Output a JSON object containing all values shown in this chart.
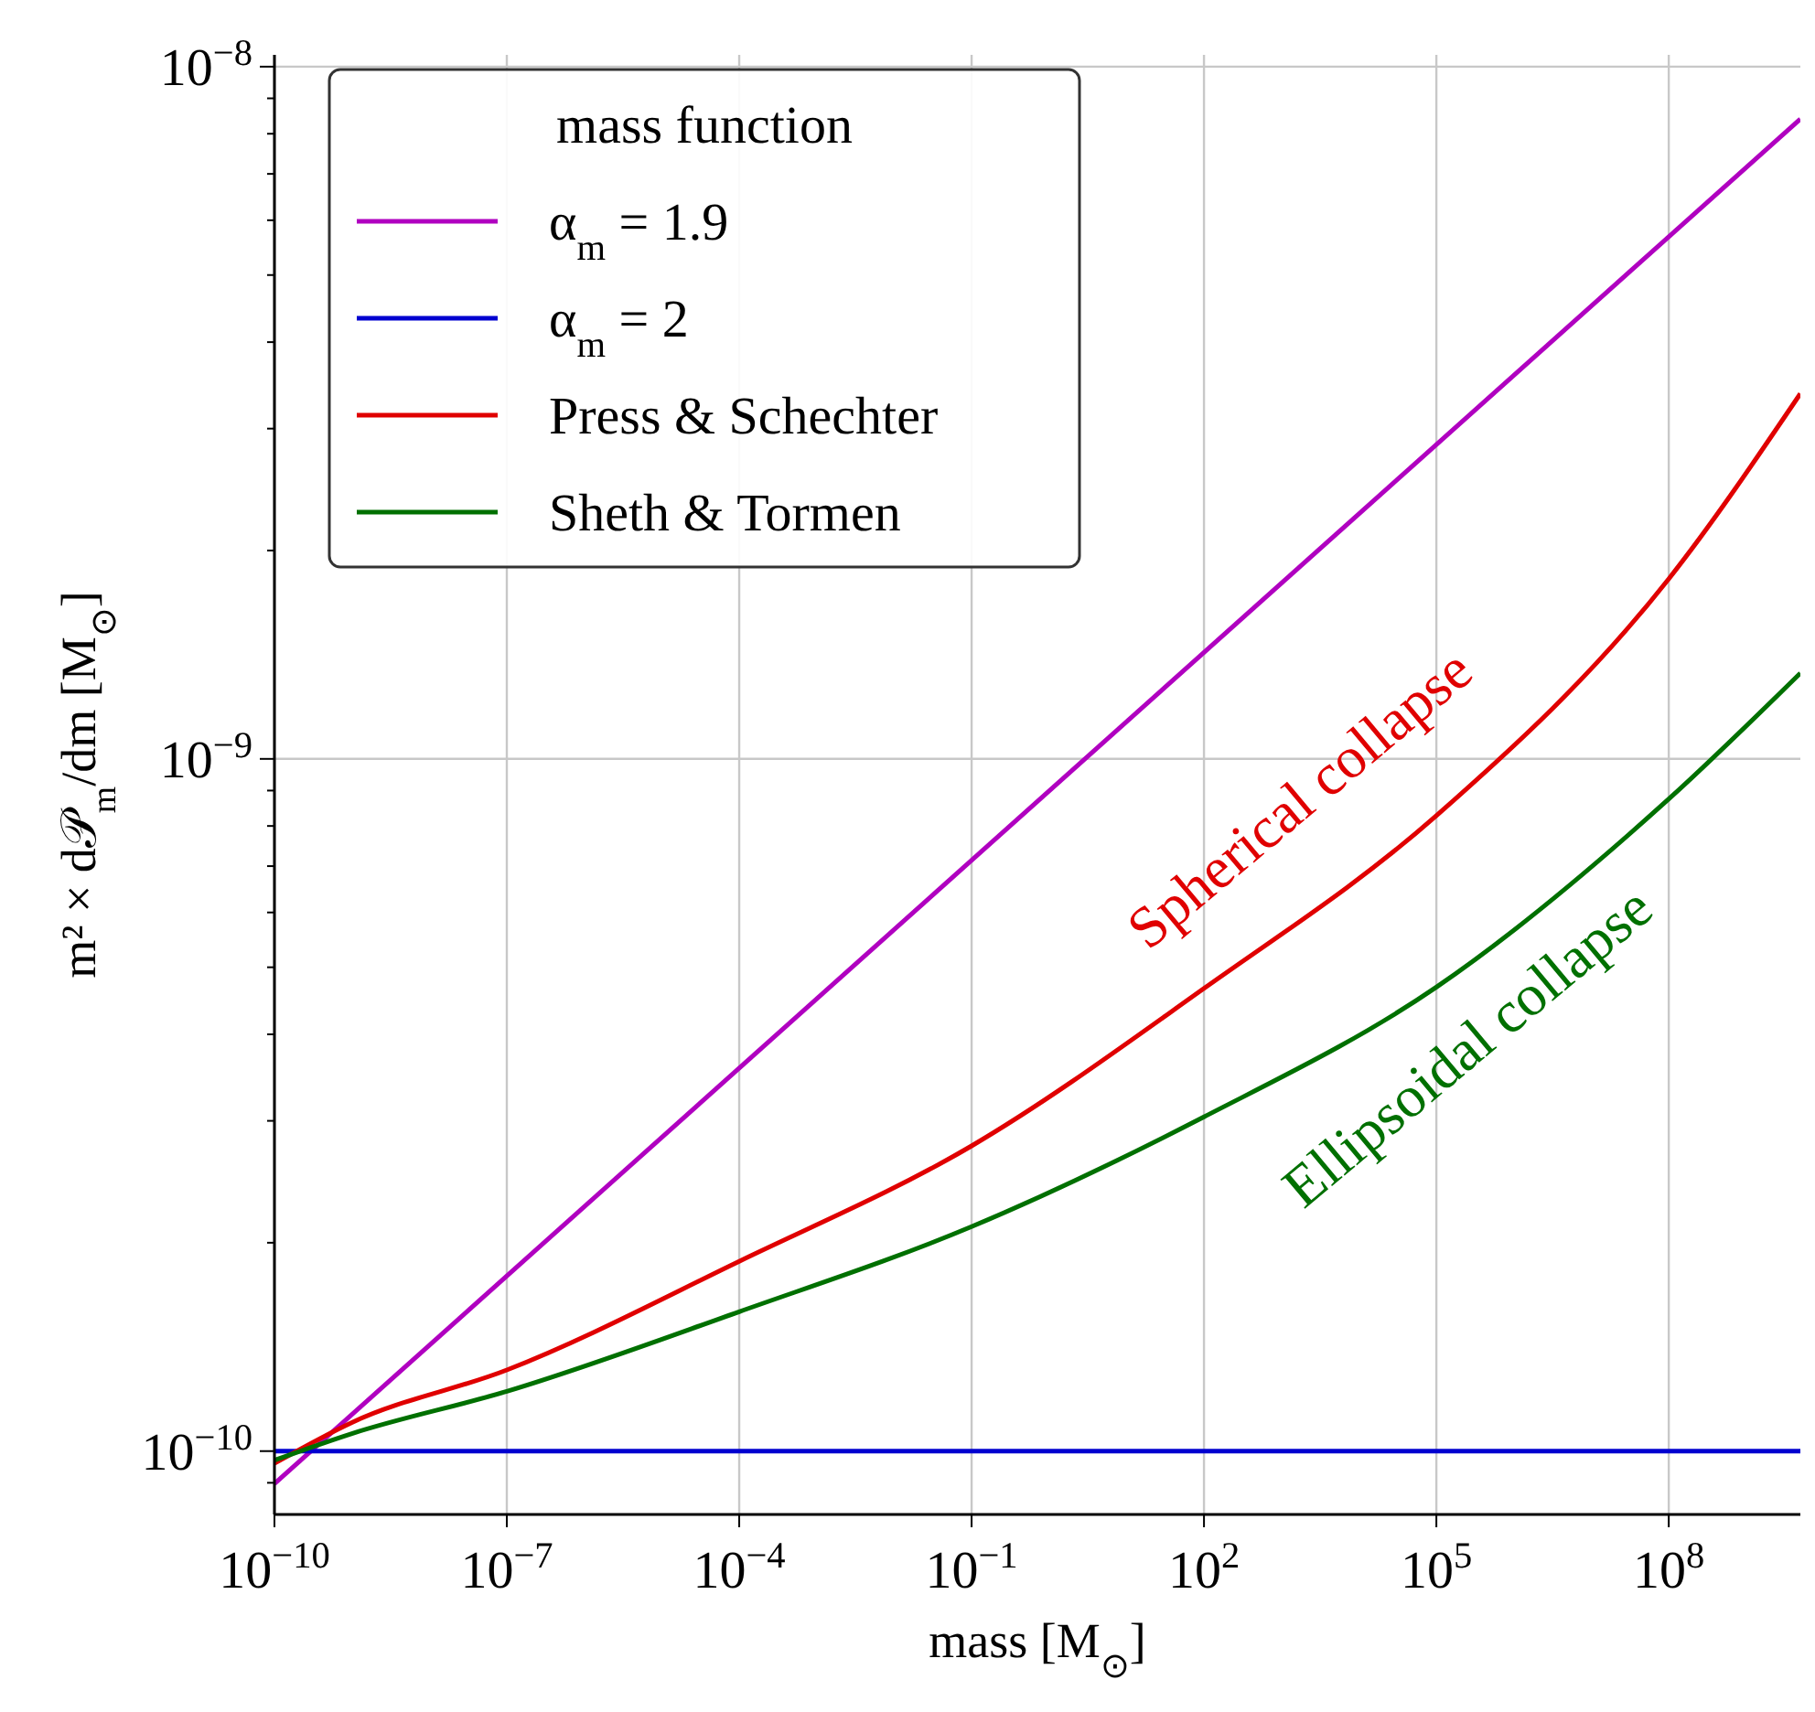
{
  "chart_data": {
    "type": "line",
    "xlabel": "mass [M$_{⊙}$]",
    "ylabel": "m² × d𝒫$_{m}$/dm [M$_{⊙}$]",
    "legend_title": "mass function",
    "log": "xy",
    "grid": true,
    "legend": "top left",
    "line_style": "solid",
    "xlim": [
      1e-10,
      5000000000.0
    ],
    "ylim": [
      8.1e-11,
      1.04e-08
    ],
    "xticks": [
      {
        "value": 1e-10,
        "label": "10$^{−10}$"
      },
      {
        "value": 1e-07,
        "label": "10$^{−7}$"
      },
      {
        "value": 0.0001,
        "label": "10$^{−4}$"
      },
      {
        "value": 0.1,
        "label": "10$^{−1}$"
      },
      {
        "value": 100,
        "label": "10$^{2}$"
      },
      {
        "value": 100000,
        "label": "10$^{5}$"
      },
      {
        "value": 100000000,
        "label": "10$^{8}$"
      }
    ],
    "yticks": [
      {
        "value": 1e-10,
        "label": "10$^{−10}$"
      },
      {
        "value": 1e-09,
        "label": "10$^{−9}$"
      },
      {
        "value": 1e-08,
        "label": "10$^{−8}$"
      }
    ],
    "series": [
      {
        "name": "α$_{m}$ = 1.9",
        "color": "#b000c0",
        "x": [
          1e-10,
          5000000000.0
        ],
        "values": [
          8.97e-11,
          8.4e-09
        ]
      },
      {
        "name": "α$_{m}$ = 2",
        "color": "#0000d0",
        "x": [
          1e-10,
          5000000000.0
        ],
        "values": [
          1e-10,
          1e-10
        ]
      },
      {
        "name": "Press & Schechter",
        "color": "#e00000",
        "x": [
          1e-10,
          1e-09,
          1e-07,
          0.0001,
          0.1,
          100,
          100000,
          100000000,
          5000000000.0
        ],
        "values": [
          9.6e-11,
          1.1e-10,
          1.31e-10,
          1.88e-10,
          2.76e-10,
          4.66e-10,
          8.28e-10,
          1.82e-09,
          3.37e-09
        ]
      },
      {
        "name": "Sheth & Tormen",
        "color": "#007000",
        "x": [
          1e-10,
          1e-09,
          1e-07,
          0.0001,
          0.1,
          100,
          100000,
          100000000,
          5000000000.0
        ],
        "values": [
          9.7e-11,
          1.06e-10,
          1.22e-10,
          1.59e-10,
          2.11e-10,
          3.04e-10,
          4.68e-10,
          8.75e-10,
          1.33e-09
        ]
      }
    ],
    "annotations": [
      "Spherical collapse",
      "Ellipsoidal collapse"
    ]
  }
}
